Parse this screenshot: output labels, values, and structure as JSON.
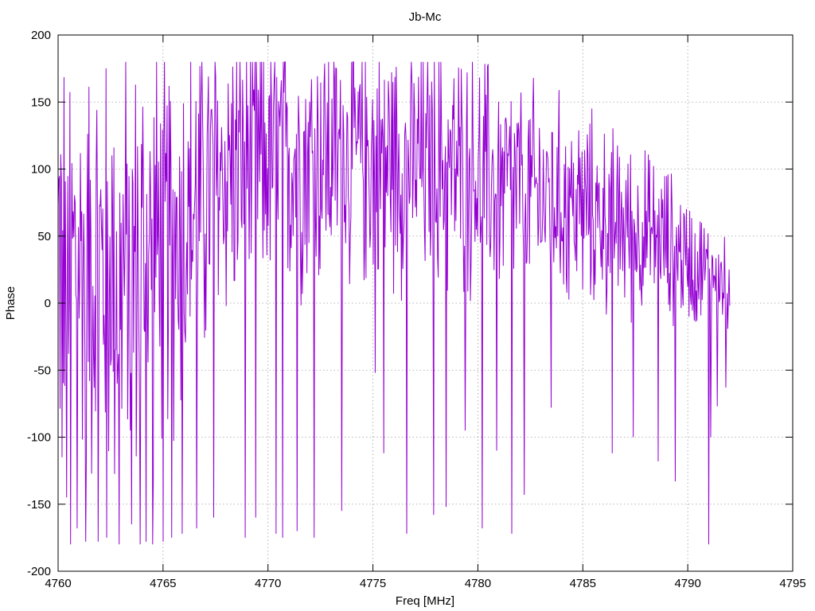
{
  "chart_data": {
    "type": "line",
    "title": "Jb-Mc",
    "xlabel": "Freq [MHz]",
    "ylabel": "Phase",
    "xlim": [
      4760,
      4795
    ],
    "ylim": [
      -200,
      200
    ],
    "xticks": [
      4760,
      4765,
      4770,
      4775,
      4780,
      4785,
      4790,
      4795
    ],
    "yticks": [
      -200,
      -150,
      -100,
      -50,
      0,
      50,
      100,
      150,
      200
    ],
    "grid": true,
    "series": [
      {
        "color": "#9400d3",
        "x_start": 4760.0,
        "x_end": 4792.0,
        "point_count": 1024,
        "envelope": [
          {
            "x": 4760,
            "mean": 40,
            "spread": 195
          },
          {
            "x": 4763,
            "mean": 20,
            "spread": 200
          },
          {
            "x": 4766,
            "mean": 60,
            "spread": 180
          },
          {
            "x": 4768,
            "mean": 100,
            "spread": 140
          },
          {
            "x": 4770,
            "mean": 110,
            "spread": 130
          },
          {
            "x": 4775,
            "mean": 110,
            "spread": 120
          },
          {
            "x": 4780,
            "mean": 95,
            "spread": 110
          },
          {
            "x": 4785,
            "mean": 70,
            "spread": 90
          },
          {
            "x": 4789,
            "mean": 45,
            "spread": 70
          },
          {
            "x": 4792,
            "mean": 10,
            "spread": 40
          }
        ],
        "spikes": [
          {
            "x": 4760.2,
            "y": -115
          },
          {
            "x": 4760.4,
            "y": -145
          },
          {
            "x": 4760.6,
            "y": -180
          },
          {
            "x": 4760.9,
            "y": -168
          },
          {
            "x": 4761.3,
            "y": -178
          },
          {
            "x": 4761.9,
            "y": -178
          },
          {
            "x": 4762.3,
            "y": -175
          },
          {
            "x": 4762.9,
            "y": -180
          },
          {
            "x": 4763.5,
            "y": -165
          },
          {
            "x": 4763.9,
            "y": -180
          },
          {
            "x": 4764.2,
            "y": -178
          },
          {
            "x": 4764.5,
            "y": -180
          },
          {
            "x": 4765.0,
            "y": -178
          },
          {
            "x": 4765.4,
            "y": -175
          },
          {
            "x": 4765.9,
            "y": -172
          },
          {
            "x": 4766.6,
            "y": -168
          },
          {
            "x": 4767.4,
            "y": -160
          },
          {
            "x": 4768.9,
            "y": -175
          },
          {
            "x": 4769.4,
            "y": -160
          },
          {
            "x": 4770.4,
            "y": -172
          },
          {
            "x": 4770.7,
            "y": -175
          },
          {
            "x": 4771.4,
            "y": -170
          },
          {
            "x": 4772.2,
            "y": -175
          },
          {
            "x": 4773.5,
            "y": -155
          },
          {
            "x": 4775.1,
            "y": -52
          },
          {
            "x": 4775.5,
            "y": -112
          },
          {
            "x": 4776.6,
            "y": -172
          },
          {
            "x": 4777.9,
            "y": -158
          },
          {
            "x": 4778.5,
            "y": -152
          },
          {
            "x": 4779.4,
            "y": -95
          },
          {
            "x": 4780.2,
            "y": -168
          },
          {
            "x": 4780.9,
            "y": -110
          },
          {
            "x": 4781.6,
            "y": -172
          },
          {
            "x": 4782.2,
            "y": -143
          },
          {
            "x": 4783.5,
            "y": -78
          },
          {
            "x": 4786.4,
            "y": -112
          },
          {
            "x": 4787.4,
            "y": -100
          },
          {
            "x": 4788.6,
            "y": -118
          },
          {
            "x": 4789.4,
            "y": -133
          },
          {
            "x": 4791.0,
            "y": -180
          },
          {
            "x": 4791.1,
            "y": -100
          },
          {
            "x": 4791.4,
            "y": -77
          },
          {
            "x": 4791.8,
            "y": -63
          },
          {
            "x": 4792.0,
            "y": -2
          }
        ]
      }
    ]
  }
}
